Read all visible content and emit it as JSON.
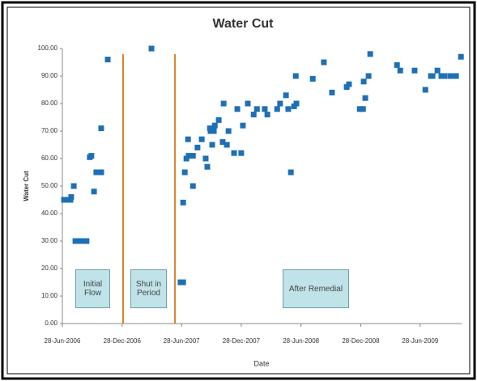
{
  "chart_data": {
    "type": "scatter",
    "title": "Water Cut",
    "x_label": "Date",
    "y_label": "Water Cut",
    "color": "#1f6fb5",
    "grid": false,
    "x": [
      "2006-07-03",
      "2006-07-13",
      "2006-07-23",
      "2006-07-25",
      "2006-08-02",
      "2006-08-07",
      "2006-08-17",
      "2006-08-27",
      "2006-09-10",
      "2006-09-20",
      "2006-09-25",
      "2006-10-03",
      "2006-10-10",
      "2006-10-18",
      "2006-10-25",
      "2006-10-25",
      "2006-11-14",
      "2007-03-28",
      "2007-06-25",
      "2007-07-03",
      "2007-07-03",
      "2007-07-08",
      "2007-07-13",
      "2007-07-18",
      "2007-07-20",
      "2007-08-02",
      "2007-08-02",
      "2007-08-16",
      "2007-08-29",
      "2007-09-10",
      "2007-09-15",
      "2007-09-23",
      "2007-09-25",
      "2007-09-30",
      "2007-10-05",
      "2007-10-08",
      "2007-10-20",
      "2007-11-01",
      "2007-11-04",
      "2007-11-14",
      "2007-11-19",
      "2007-12-06",
      "2007-12-16",
      "2007-12-28",
      "2008-01-02",
      "2008-01-17",
      "2008-02-04",
      "2008-02-14",
      "2008-03-09",
      "2008-03-17",
      "2008-04-16",
      "2008-04-25",
      "2008-05-13",
      "2008-05-20",
      "2008-05-28",
      "2008-06-07",
      "2008-06-12",
      "2008-06-14",
      "2008-08-03",
      "2008-09-06",
      "2008-10-01",
      "2008-11-15",
      "2008-11-22",
      "2008-12-25",
      "2009-01-04",
      "2009-01-06",
      "2009-01-11",
      "2009-01-21",
      "2009-01-26",
      "2009-04-18",
      "2009-04-28",
      "2009-06-11",
      "2009-07-14",
      "2009-07-31",
      "2009-08-05",
      "2009-08-20",
      "2009-09-01",
      "2009-09-11",
      "2009-09-29",
      "2009-10-16",
      "2009-10-31"
    ],
    "values": [
      45,
      45,
      45,
      46,
      50,
      30,
      30,
      30,
      30,
      60.5,
      61,
      48,
      55,
      55,
      55,
      71,
      96,
      100,
      15,
      15,
      44,
      55,
      60,
      67,
      61,
      61,
      50,
      64,
      67,
      60,
      57,
      71,
      70,
      65,
      70,
      72,
      74,
      66,
      80,
      65,
      70,
      62,
      78,
      62,
      72,
      80,
      76,
      78,
      78,
      76,
      78,
      80,
      83,
      78,
      55,
      79,
      90,
      80,
      89,
      95,
      84,
      86,
      87,
      78,
      78,
      88,
      82,
      90,
      98,
      94,
      92,
      92,
      85,
      90,
      90,
      92,
      90,
      90,
      90,
      90,
      97
    ],
    "xlim": [
      "2006-06-28",
      "2009-11-02"
    ],
    "xticks": [
      {
        "value": "2006-06-28",
        "label": "28-Jun-2006"
      },
      {
        "value": "2006-12-28",
        "label": "28-Dec-2006"
      },
      {
        "value": "2007-06-28",
        "label": "28-Jun-2007"
      },
      {
        "value": "2007-12-28",
        "label": "28-Dec-2007"
      },
      {
        "value": "2008-06-28",
        "label": "28-Jun-2008"
      },
      {
        "value": "2008-12-28",
        "label": "28-Dec-2008"
      },
      {
        "value": "2009-06-28",
        "label": "28-Jun-2009"
      }
    ],
    "ylim": [
      0,
      100
    ],
    "yticks": [
      {
        "value": 0,
        "label": "0.00"
      },
      {
        "value": 10,
        "label": "10.00"
      },
      {
        "value": 20,
        "label": "20.00"
      },
      {
        "value": 30,
        "label": "30.00"
      },
      {
        "value": 40,
        "label": "40.00"
      },
      {
        "value": 50,
        "label": "50.00"
      },
      {
        "value": 60,
        "label": "60.00"
      },
      {
        "value": 70,
        "label": "70.00"
      },
      {
        "value": 80,
        "label": "80.00"
      },
      {
        "value": 90,
        "label": "90.00"
      },
      {
        "value": 100,
        "label": "100.00"
      }
    ],
    "period_lines": [
      "2006-12-31",
      "2007-06-08"
    ],
    "period_line_color": "#d9822b",
    "annotations": [
      "Initial Flow",
      "Shut in Period",
      "After Remedial"
    ]
  }
}
